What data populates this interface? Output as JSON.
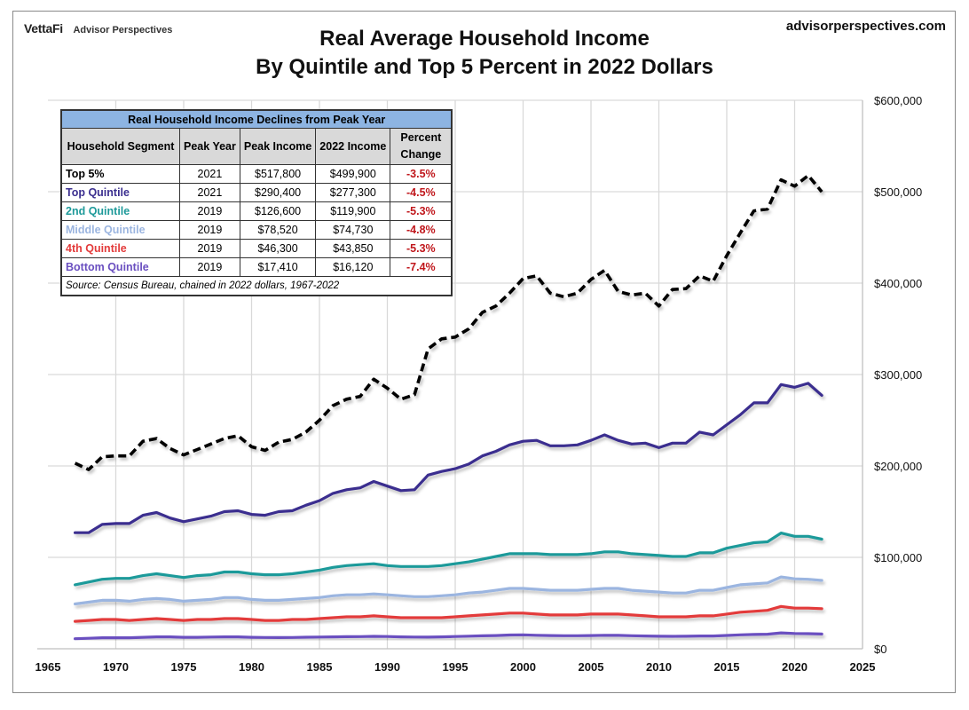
{
  "header": {
    "brand": "VettaFi",
    "brand_sub": "Advisor Perspectives",
    "site": "advisorperspectives.com"
  },
  "table": {
    "caption": "Real Household Income Declines from Peak Year",
    "columns": [
      "Household Segment",
      "Peak Year",
      "Peak Income",
      "2022 Income",
      "Percent Change"
    ],
    "rows": [
      {
        "segment": "Top 5%",
        "peak_year": "2021",
        "peak_income": "$517,800",
        "income_2022": "$499,900",
        "pct": "-3.5%",
        "color": "#000000"
      },
      {
        "segment": "Top Quintile",
        "peak_year": "2021",
        "peak_income": "$290,400",
        "income_2022": "$277,300",
        "pct": "-4.5%",
        "color": "#3b2f8f"
      },
      {
        "segment": "2nd Quintile",
        "peak_year": "2019",
        "peak_income": "$126,600",
        "income_2022": "$119,900",
        "pct": "-5.3%",
        "color": "#1e9a9a"
      },
      {
        "segment": "Middle Quintile",
        "peak_year": "2019",
        "peak_income": "$78,520",
        "income_2022": "$74,730",
        "pct": "-4.8%",
        "color": "#9bb5e0"
      },
      {
        "segment": "4th Quintile",
        "peak_year": "2019",
        "peak_income": "$46,300",
        "income_2022": "$43,850",
        "pct": "-5.3%",
        "color": "#e33b3b"
      },
      {
        "segment": "Bottom Quintile",
        "peak_year": "2019",
        "peak_income": "$17,410",
        "income_2022": "$16,120",
        "pct": "-7.4%",
        "color": "#6a4fc0"
      }
    ],
    "source": "Source: Census Bureau, chained in 2022 dollars, 1967-2022"
  },
  "chart_data": {
    "type": "line",
    "title": "Real Average Household Income By Quintile and Top 5 Percent in 2022 Dollars",
    "title_lines": [
      "Real Average Household Income",
      "By Quintile and Top 5 Percent in 2022 Dollars"
    ],
    "xlabel": "",
    "ylabel": "",
    "xlim": [
      1965,
      2025
    ],
    "ylim": [
      0,
      600000
    ],
    "x_ticks": [
      1965,
      1970,
      1975,
      1980,
      1985,
      1990,
      1995,
      2000,
      2005,
      2010,
      2015,
      2020,
      2025
    ],
    "y_ticks": [
      0,
      100000,
      200000,
      300000,
      400000,
      500000,
      600000
    ],
    "y_tick_labels": [
      "$0",
      "$100,000",
      "$200,000",
      "$300,000",
      "$400,000",
      "$500,000",
      "$600,000"
    ],
    "y_axis_side": "right",
    "grid": true,
    "x_start": 1967,
    "series": [
      {
        "name": "Top 5%",
        "color": "#000000",
        "dashed": true,
        "values": [
          203000,
          196000,
          210000,
          211000,
          211000,
          227000,
          230000,
          219000,
          212000,
          218000,
          224000,
          230000,
          233000,
          221000,
          217000,
          226000,
          229000,
          237000,
          250000,
          266000,
          273000,
          276000,
          295000,
          285000,
          273000,
          278000,
          328000,
          339000,
          341000,
          350000,
          368000,
          375000,
          389000,
          405000,
          408000,
          389000,
          385000,
          389000,
          404000,
          414000,
          391000,
          387000,
          389000,
          375000,
          393000,
          394000,
          408000,
          402000,
          430000,
          455000,
          479000,
          481000,
          513000,
          506000,
          517800,
          499900
        ]
      },
      {
        "name": "Top Quintile",
        "color": "#3b2f8f",
        "dashed": false,
        "values": [
          127000,
          127000,
          136000,
          137000,
          137000,
          146000,
          149000,
          143000,
          139000,
          142000,
          145000,
          150000,
          151000,
          147000,
          146000,
          150000,
          151000,
          157000,
          162000,
          170000,
          174000,
          176000,
          183000,
          178000,
          173000,
          174000,
          190000,
          194000,
          197000,
          202000,
          211000,
          216000,
          223000,
          227000,
          228000,
          222000,
          222000,
          223000,
          228000,
          234000,
          228000,
          224000,
          225000,
          220000,
          225000,
          225000,
          237000,
          234000,
          245000,
          256000,
          269000,
          269000,
          289000,
          286000,
          290400,
          277300
        ]
      },
      {
        "name": "2nd Quintile",
        "color": "#1e9a9a",
        "dashed": false,
        "values": [
          70000,
          73000,
          76000,
          77000,
          77000,
          80000,
          82000,
          80000,
          78000,
          80000,
          81000,
          84000,
          84000,
          82000,
          81000,
          81000,
          82000,
          84000,
          86000,
          89000,
          91000,
          92000,
          93000,
          91000,
          90000,
          90000,
          90000,
          91000,
          93000,
          95000,
          98000,
          101000,
          104000,
          104000,
          104000,
          103000,
          103000,
          103000,
          104000,
          106000,
          106000,
          104000,
          103000,
          102000,
          101000,
          101000,
          105000,
          105000,
          110000,
          113000,
          116000,
          117000,
          126600,
          123000,
          123000,
          119900
        ]
      },
      {
        "name": "Middle Quintile",
        "color": "#9bb5e0",
        "dashed": false,
        "values": [
          49000,
          51000,
          53000,
          53000,
          52000,
          54000,
          55000,
          54000,
          52000,
          53000,
          54000,
          56000,
          56000,
          54000,
          53000,
          53000,
          54000,
          55000,
          56000,
          58000,
          59000,
          59000,
          60000,
          59000,
          58000,
          57000,
          57000,
          58000,
          59000,
          61000,
          62000,
          64000,
          66000,
          66000,
          65000,
          64000,
          64000,
          64000,
          65000,
          66000,
          66000,
          64000,
          63000,
          62000,
          61000,
          61000,
          64000,
          64000,
          67000,
          70000,
          71000,
          72000,
          78520,
          76500,
          76000,
          74730
        ]
      },
      {
        "name": "4th Quintile",
        "color": "#e33b3b",
        "dashed": false,
        "values": [
          30000,
          31000,
          32000,
          32000,
          31000,
          32000,
          33000,
          32000,
          31000,
          32000,
          32000,
          33000,
          33000,
          32000,
          31000,
          31000,
          32000,
          32000,
          33000,
          34000,
          35000,
          35000,
          36000,
          35000,
          34000,
          34000,
          34000,
          34000,
          35000,
          36000,
          37000,
          38000,
          39000,
          39000,
          38000,
          37000,
          37000,
          37000,
          38000,
          38000,
          38000,
          37000,
          36000,
          35000,
          35000,
          35000,
          36000,
          36000,
          38000,
          40000,
          41000,
          42000,
          46300,
          44500,
          44500,
          43850
        ]
      },
      {
        "name": "Bottom Quintile",
        "color": "#6a4fc0",
        "dashed": false,
        "values": [
          11000,
          11500,
          12000,
          12000,
          12000,
          12500,
          13000,
          13000,
          12500,
          12500,
          12800,
          13000,
          13000,
          12500,
          12300,
          12200,
          12300,
          12600,
          12800,
          13000,
          13200,
          13300,
          13600,
          13400,
          13000,
          12800,
          12700,
          13000,
          13400,
          13800,
          14200,
          14500,
          15000,
          15200,
          14800,
          14500,
          14300,
          14300,
          14500,
          14800,
          14700,
          14300,
          14000,
          13700,
          13600,
          13700,
          14000,
          14000,
          14600,
          15200,
          15600,
          15900,
          17410,
          16700,
          16500,
          16120
        ]
      }
    ]
  }
}
